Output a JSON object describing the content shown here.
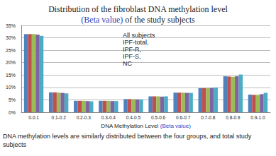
{
  "chart_data": {
    "type": "bar",
    "title": "Distribution of the fibroblast DNA methylation level",
    "subtitle": "(Beta value) of the study subjects",
    "xlabel": "DNA Methylation Level (Beta value)",
    "annotation": "DNA methylation levels are similarly distributed between the four groups, and total study subjects",
    "categories": [
      "0-0.1",
      "0.1-0.2",
      "0.2-0.3",
      "0.3-0.4",
      "0.4-0.5",
      "0.5-0.6",
      "0.6-0.7",
      "0.7-0.8",
      "0.8-0.9",
      "0.9-1.0"
    ],
    "series": [
      {
        "name": "All subjects",
        "color": "#4f81bd",
        "values": [
          31.5,
          8.0,
          4.6,
          4.6,
          5.3,
          6.4,
          7.9,
          9.7,
          14.5,
          7.1
        ]
      },
      {
        "name": "IPF-total,",
        "color": "#c0504d",
        "values": [
          31.5,
          8.0,
          4.6,
          4.6,
          5.3,
          6.4,
          7.9,
          9.7,
          14.4,
          7.0
        ]
      },
      {
        "name": "IPF-R,",
        "color": "#9bbb59",
        "values": [
          31.5,
          7.9,
          4.6,
          4.6,
          5.3,
          6.4,
          7.9,
          9.7,
          14.3,
          7.0
        ]
      },
      {
        "name": "IPF-S,",
        "color": "#8064a2",
        "values": [
          31.3,
          7.8,
          4.5,
          4.5,
          5.2,
          6.3,
          7.8,
          9.8,
          14.5,
          7.3
        ]
      },
      {
        "name": "NC",
        "color": "#4bacc6",
        "values": [
          30.8,
          7.6,
          4.4,
          4.5,
          5.2,
          6.4,
          7.8,
          10.0,
          15.2,
          7.8
        ]
      }
    ],
    "ylim": [
      0,
      35
    ],
    "yticks": [
      {
        "value": 0,
        "label": "0%"
      },
      {
        "value": 5,
        "label": "5%"
      },
      {
        "value": 10,
        "label": "10%"
      },
      {
        "value": 15,
        "label": "15%"
      },
      {
        "value": 20,
        "label": "20%"
      },
      {
        "value": 25,
        "label": "25%"
      },
      {
        "value": 30,
        "label": "30%"
      },
      {
        "value": 35,
        "label": "35%"
      }
    ],
    "grid": true,
    "legend": "top"
  }
}
